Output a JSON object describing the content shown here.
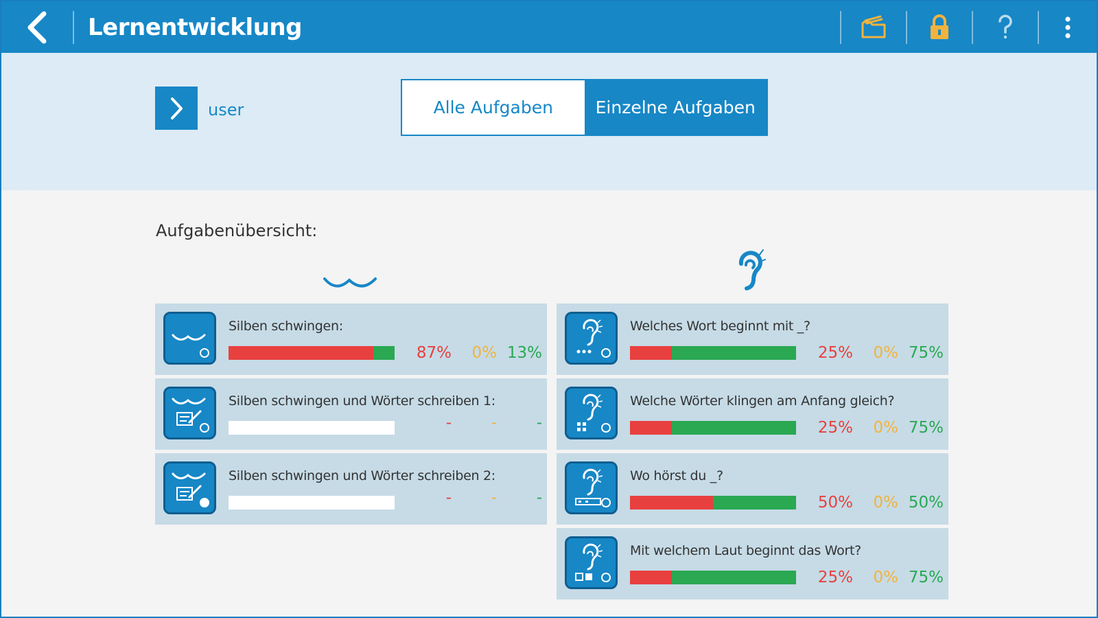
{
  "header": {
    "title": "Lernentwicklung"
  },
  "user": {
    "label": "user"
  },
  "tabs": {
    "all_label": "Alle Aufgaben",
    "single_label": "Einzelne Aufgaben",
    "active": "single"
  },
  "section_title": "Aufgabenübersicht:",
  "colors": {
    "primary": "#1787c6",
    "red": "#e8403f",
    "orange": "#f2b33d",
    "green": "#2aa852",
    "folder_icon": "#f2b33d",
    "lock_icon": "#f2b33d"
  },
  "left_column": {
    "icon": "syllable-swing-icon",
    "tasks": [
      {
        "title": "Silben schwingen:",
        "red": 87,
        "orange": 0,
        "green": 13,
        "red_label": "87%",
        "orange_label": "0%",
        "green_label": "13%",
        "icon": "syllable-swing-icon"
      },
      {
        "title": "Silben schwingen und Wörter schreiben 1:",
        "red": 0,
        "orange": 0,
        "green": 0,
        "red_label": "-",
        "orange_label": "-",
        "green_label": "-",
        "icon": "syllable-write-icon"
      },
      {
        "title": "Silben schwingen und Wörter schreiben 2:",
        "red": 0,
        "orange": 0,
        "green": 0,
        "red_label": "-",
        "orange_label": "-",
        "green_label": "-",
        "icon": "syllable-write-icon"
      }
    ]
  },
  "right_column": {
    "icon": "ear-icon",
    "tasks": [
      {
        "title": "Welches Wort beginnt mit _?",
        "red": 25,
        "orange": 0,
        "green": 75,
        "red_label": "25%",
        "orange_label": "0%",
        "green_label": "75%",
        "icon": "ear-icon"
      },
      {
        "title": "Welche Wörter klingen am Anfang gleich?",
        "red": 25,
        "orange": 0,
        "green": 75,
        "red_label": "25%",
        "orange_label": "0%",
        "green_label": "75%",
        "icon": "ear-icon"
      },
      {
        "title": "Wo hörst du _?",
        "red": 50,
        "orange": 0,
        "green": 50,
        "red_label": "50%",
        "orange_label": "0%",
        "green_label": "50%",
        "icon": "ear-icon"
      },
      {
        "title": "Mit welchem Laut beginnt das Wort?",
        "red": 25,
        "orange": 0,
        "green": 75,
        "red_label": "25%",
        "orange_label": "0%",
        "green_label": "75%",
        "icon": "ear-icon"
      }
    ]
  }
}
